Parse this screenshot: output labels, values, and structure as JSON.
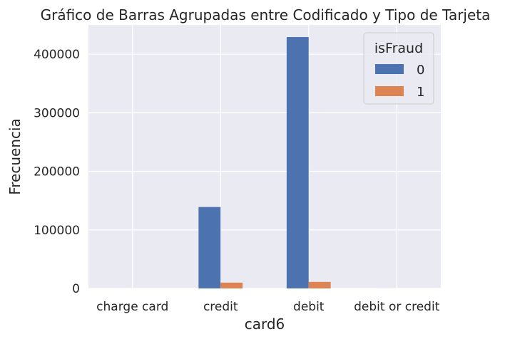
{
  "chart_data": {
    "type": "bar",
    "title": "Gráfico de Barras Agrupadas entre Codificado y Tipo de Tarjeta",
    "xlabel": "card6",
    "ylabel": "Frecuencia",
    "categories": [
      "charge card",
      "credit",
      "debit",
      "debit or credit"
    ],
    "series": [
      {
        "name": "0",
        "color": "#4c72b0",
        "values": [
          15,
          139036,
          429264,
          30
        ]
      },
      {
        "name": "1",
        "color": "#dd8452",
        "values": [
          0,
          9950,
          11150,
          0
        ]
      }
    ],
    "ylim": [
      0,
      450000
    ],
    "yticks": [
      0,
      100000,
      200000,
      300000,
      400000
    ],
    "ytick_labels": [
      "0",
      "100000",
      "200000",
      "300000",
      "400000"
    ],
    "grid": true,
    "legend": {
      "title": "isFraud",
      "placement": "top-right"
    },
    "colors": {
      "plot_background": "#eaeaf2",
      "grid": "#ffffff"
    }
  }
}
